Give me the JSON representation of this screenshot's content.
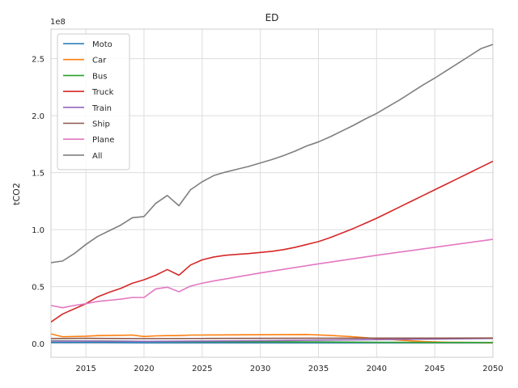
{
  "chart_data": {
    "type": "line",
    "title": "ED",
    "xlabel": "",
    "ylabel": "tCO2",
    "offset_label": "1e8",
    "xlim": [
      2012,
      2050
    ],
    "ylim": [
      -0.12,
      2.76
    ],
    "xticks": [
      2015,
      2020,
      2025,
      2030,
      2035,
      2040,
      2045,
      2050
    ],
    "yticks": [
      0.0,
      0.5,
      1.0,
      1.5,
      2.0,
      2.5
    ],
    "ytick_labels": [
      "0.0",
      "0.5",
      "1.0",
      "1.5",
      "2.0",
      "2.5"
    ],
    "grid": true,
    "legend_position": "top-left",
    "series": [
      {
        "name": "Moto",
        "color": "#1f77b4",
        "x": [
          2012,
          2015,
          2020,
          2025,
          2030,
          2035,
          2040,
          2045,
          2050
        ],
        "y": [
          0.01,
          0.01,
          0.008,
          0.008,
          0.008,
          0.008,
          0.008,
          0.008,
          0.008
        ]
      },
      {
        "name": "Car",
        "color": "#ff7f0e",
        "x": [
          2012,
          2013,
          2015,
          2016,
          2017,
          2018,
          2019,
          2020,
          2021,
          2022,
          2023,
          2024,
          2025,
          2030,
          2034,
          2036,
          2038,
          2040,
          2042,
          2044,
          2046,
          2048,
          2050
        ],
        "y": [
          0.085,
          0.06,
          0.065,
          0.07,
          0.072,
          0.073,
          0.075,
          0.062,
          0.068,
          0.07,
          0.07,
          0.075,
          0.075,
          0.078,
          0.08,
          0.072,
          0.06,
          0.045,
          0.03,
          0.018,
          0.012,
          0.01,
          0.008
        ]
      },
      {
        "name": "Bus",
        "color": "#2ca02c",
        "x": [
          2012,
          2015,
          2020,
          2025,
          2030,
          2035,
          2040,
          2045,
          2050
        ],
        "y": [
          0.025,
          0.023,
          0.02,
          0.018,
          0.016,
          0.014,
          0.012,
          0.01,
          0.01
        ]
      },
      {
        "name": "Truck",
        "color": "#d62728",
        "x": [
          2012,
          2013,
          2015,
          2016,
          2017,
          2018,
          2019,
          2020,
          2021,
          2022,
          2023,
          2024,
          2025,
          2026,
          2027,
          2028,
          2029,
          2030,
          2031,
          2032,
          2033,
          2034,
          2035,
          2036,
          2037,
          2038,
          2039,
          2040,
          2041,
          2042,
          2043,
          2044,
          2045,
          2046,
          2047,
          2048,
          2049,
          2050
        ],
        "y": [
          0.19,
          0.26,
          0.35,
          0.41,
          0.45,
          0.485,
          0.53,
          0.56,
          0.6,
          0.65,
          0.6,
          0.69,
          0.735,
          0.76,
          0.775,
          0.783,
          0.79,
          0.8,
          0.81,
          0.825,
          0.845,
          0.87,
          0.895,
          0.93,
          0.97,
          1.01,
          1.055,
          1.1,
          1.15,
          1.2,
          1.25,
          1.3,
          1.35,
          1.4,
          1.45,
          1.5,
          1.55,
          1.6
        ]
      },
      {
        "name": "Train",
        "color": "#9467bd",
        "x": [
          2012,
          2015,
          2020,
          2025,
          2030,
          2035,
          2040,
          2045,
          2050
        ],
        "y": [
          0.022,
          0.022,
          0.02,
          0.022,
          0.025,
          0.03,
          0.035,
          0.04,
          0.045
        ]
      },
      {
        "name": "Ship",
        "color": "#8c564b",
        "x": [
          2012,
          2015,
          2020,
          2025,
          2030,
          2035,
          2040,
          2045,
          2050
        ],
        "y": [
          0.045,
          0.046,
          0.044,
          0.045,
          0.046,
          0.047,
          0.048,
          0.048,
          0.049
        ]
      },
      {
        "name": "Plane",
        "color": "#e377c2",
        "x": [
          2012,
          2013,
          2014,
          2015,
          2016,
          2017,
          2018,
          2019,
          2020,
          2021,
          2022,
          2023,
          2024,
          2025,
          2026,
          2030,
          2035,
          2040,
          2045,
          2050
        ],
        "y": [
          0.335,
          0.315,
          0.335,
          0.35,
          0.37,
          0.38,
          0.39,
          0.405,
          0.405,
          0.48,
          0.495,
          0.455,
          0.505,
          0.53,
          0.55,
          0.62,
          0.7,
          0.775,
          0.845,
          0.915
        ]
      },
      {
        "name": "All",
        "color": "#7f7f7f",
        "x": [
          2012,
          2013,
          2014,
          2015,
          2016,
          2017,
          2018,
          2019,
          2020,
          2021,
          2022,
          2023,
          2024,
          2025,
          2026,
          2027,
          2028,
          2029,
          2030,
          2031,
          2032,
          2033,
          2034,
          2035,
          2036,
          2037,
          2038,
          2039,
          2040,
          2041,
          2042,
          2043,
          2044,
          2045,
          2046,
          2047,
          2048,
          2049,
          2050
        ],
        "y": [
          0.71,
          0.725,
          0.79,
          0.87,
          0.94,
          0.99,
          1.04,
          1.105,
          1.115,
          1.23,
          1.3,
          1.21,
          1.35,
          1.42,
          1.475,
          1.505,
          1.53,
          1.555,
          1.585,
          1.615,
          1.65,
          1.69,
          1.735,
          1.77,
          1.815,
          1.865,
          1.915,
          1.97,
          2.02,
          2.08,
          2.14,
          2.205,
          2.27,
          2.33,
          2.395,
          2.46,
          2.525,
          2.59,
          2.625
        ]
      }
    ]
  }
}
